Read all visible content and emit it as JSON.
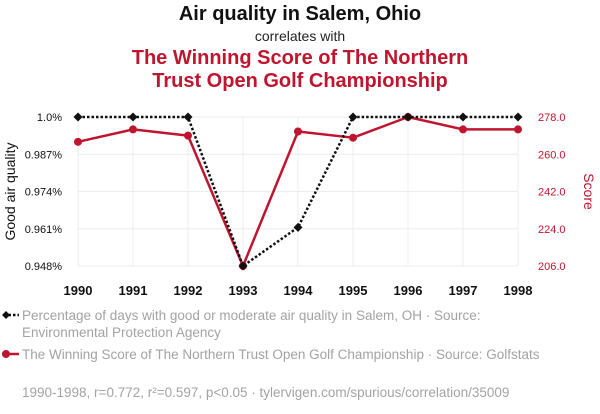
{
  "header": {
    "title": "Air quality in Salem, Ohio",
    "connector": "correlates with",
    "subtitle_line1": "The Winning Score of The Northern",
    "subtitle_line2": "Trust Open Golf Championship"
  },
  "colors": {
    "series1": "#111111",
    "series2": "#c0152f",
    "muted": "#a3a3a3",
    "grid": "#ececec"
  },
  "chart_data": {
    "type": "line",
    "x": [
      1990,
      1991,
      1992,
      1993,
      1994,
      1995,
      1996,
      1997,
      1998
    ],
    "x_ticks": [
      "1990",
      "1991",
      "1992",
      "1993",
      "1994",
      "1995",
      "1996",
      "1997",
      "1998"
    ],
    "y_left": {
      "label": "Good air quality",
      "ticks": [
        "0.948%",
        "0.961%",
        "0.974%",
        "0.987%",
        "1.0%"
      ],
      "tick_values": [
        0.948,
        0.961,
        0.974,
        0.987,
        1.0
      ],
      "range": [
        0.948,
        1.0
      ]
    },
    "y_right": {
      "label": "Score",
      "ticks": [
        "206.0",
        "224.0",
        "242.0",
        "260.0",
        "278.0"
      ],
      "tick_values": [
        206,
        224,
        242,
        260,
        278
      ],
      "range": [
        206,
        278
      ]
    },
    "grid": true,
    "series": [
      {
        "name": "Percentage of days with good or moderate air quality in Salem, OH · Source: Environmental Protection Agency",
        "axis": "left",
        "style": "dotted",
        "marker": "diamond",
        "values": [
          1.0,
          1.0,
          1.0,
          0.948,
          0.9615,
          1.0,
          1.0,
          1.0,
          1.0
        ]
      },
      {
        "name": "The Winning Score of The Northern Trust Open Golf Championship · Source: Golfstats",
        "axis": "right",
        "style": "solid",
        "marker": "circle",
        "values": [
          266,
          272,
          269,
          206,
          271,
          268,
          278,
          272,
          272
        ]
      }
    ]
  },
  "footer": {
    "text": "1990-1998, r=0.772, r²=0.597, p<0.05 · tylervigen.com/spurious/correlation/35009"
  }
}
